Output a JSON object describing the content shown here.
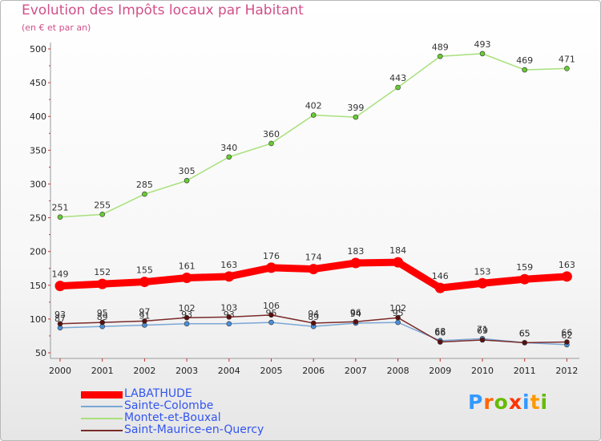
{
  "title": "Evolution des Impôts locaux par Habitant",
  "subtitle": "(en € et par an)",
  "brand": {
    "letters": [
      "P",
      "r",
      "o",
      "x",
      "i",
      "t",
      "i"
    ]
  },
  "chart_data": {
    "type": "line",
    "title": "Evolution des Impôts locaux par Habitant",
    "ylabel": "(en € et par an)",
    "xlabel": "",
    "ylim": [
      50,
      500
    ],
    "yticks": [
      50,
      100,
      150,
      200,
      250,
      300,
      350,
      400,
      450,
      500
    ],
    "categories": [
      "2000",
      "2001",
      "2002",
      "2003",
      "2004",
      "2005",
      "2006",
      "2007",
      "2008",
      "2009",
      "2010",
      "2011",
      "2012"
    ],
    "grid": false,
    "legend_position": "bottom-left",
    "series": [
      {
        "name": "LABATHUDE",
        "color": "#ff0000",
        "marker_color": "#ff0000",
        "width": "thick",
        "values": [
          149,
          152,
          155,
          161,
          163,
          176,
          174,
          183,
          184,
          146,
          153,
          159,
          163
        ]
      },
      {
        "name": "Sainte-Colombe",
        "color": "#7aa7d6",
        "marker_color": "#4a90d9",
        "width": "thin",
        "values": [
          87,
          89,
          91,
          93,
          93,
          95,
          89,
          94,
          95,
          68,
          71,
          65,
          62
        ]
      },
      {
        "name": "Montet-et-Bouxal",
        "color": "#a8e07a",
        "marker_color": "#66cc33",
        "width": "thin",
        "values": [
          251,
          255,
          285,
          305,
          340,
          360,
          402,
          399,
          443,
          489,
          493,
          469,
          471
        ]
      },
      {
        "name": "Saint-Maurice-en-Quercy",
        "color": "#7a2a2a",
        "marker_color": "#5a0f0f",
        "width": "thin",
        "values": [
          93,
          95,
          97,
          102,
          103,
          106,
          94,
          96,
          102,
          66,
          69,
          65,
          66
        ]
      }
    ]
  },
  "logo_colors": [
    "#3399ff",
    "#ff6600",
    "#66bb00",
    "#ff3300",
    "#3399ff",
    "#ff9900",
    "#66bb00"
  ]
}
